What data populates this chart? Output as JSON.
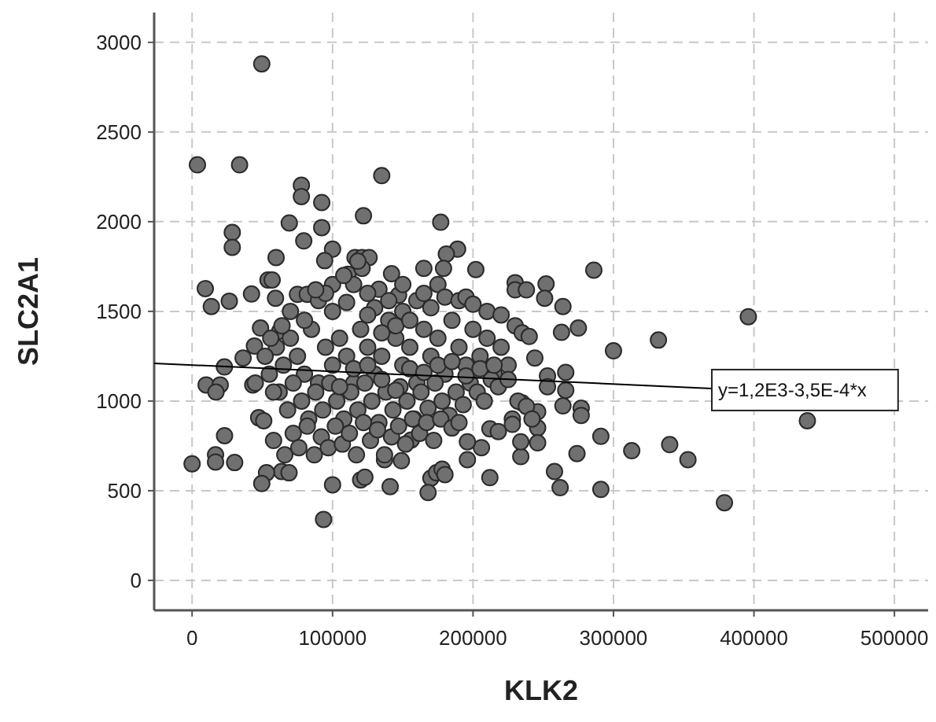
{
  "chart_data": {
    "type": "scatter",
    "xlabel": "KLK2",
    "ylabel": "SLC2A1",
    "xlim": [
      -27000,
      524000
    ],
    "xticks": [
      0,
      100000,
      200000,
      300000,
      400000,
      500000
    ],
    "ylim": [
      -167,
      3166
    ],
    "yticks": [
      0,
      500,
      1000,
      1500,
      2000,
      2500,
      3000
    ],
    "grid": true,
    "series": [
      {
        "color": "#707070",
        "marker": "circle",
        "x": [
          49600,
          3800,
          33800,
          135000,
          77800,
          77800,
          92300,
          122000,
          69200,
          92300,
          177000,
          28600,
          28600,
          79500,
          100000,
          94400,
          59800,
          189000,
          181000,
          116000,
          121000,
          126000,
          111000,
          121000,
          142000,
          165000,
          179000,
          202000,
          286000,
          9400,
          13700,
          26500,
          42300,
          54000,
          57000,
          59400,
          133000,
          147000,
          75000,
          82000,
          230000,
          230000,
          238000,
          252000,
          251000,
          264000,
          263000,
          275000,
          300000,
          332000,
          396000,
          438000,
          379000,
          353000,
          340000,
          313000,
          291000,
          291000,
          274000,
          277000,
          277000,
          264000,
          262000,
          258000,
          244000,
          253000,
          253000,
          266000,
          266000,
          246000,
          246000,
          246000,
          234000,
          234000,
          228000,
          235000,
          212000,
          218000,
          212000,
          206000,
          196000,
          196000,
          170000,
          174000,
          178000,
          180000,
          168000,
          141000,
          149000,
          156000,
          120000,
          123000,
          137000,
          100000,
          93600,
          63700,
          69000,
          53000,
          49600,
          47400,
          51000,
          43200,
          23100,
          16700,
          16700,
          30300,
          0,
          10000,
          20000,
          17000,
          23000,
          36300,
          44400,
          48700,
          62400,
          60000,
          65000,
          70000,
          75000,
          80000,
          85000,
          90000,
          95000,
          100000,
          105000,
          110000,
          115000,
          120000,
          125000,
          130000,
          135000,
          140000,
          145000,
          150000,
          155000,
          160000,
          165000,
          170000,
          175000,
          180000,
          185000,
          190000,
          195000,
          200000,
          205000,
          210000,
          215000,
          220000,
          225000,
          62000,
          68000,
          72000,
          78000,
          83000,
          88000,
          93000,
          98000,
          103000,
          108000,
          113000,
          118000,
          123000,
          128000,
          133000,
          138000,
          143000,
          148000,
          153000,
          158000,
          163000,
          168000,
          173000,
          178000,
          183000,
          188000,
          193000,
          198000,
          203000,
          208000,
          213000,
          218000,
          58000,
          66000,
          72000,
          76000,
          82000,
          87000,
          92000,
          97000,
          102000,
          107000,
          112000,
          117000,
          122000,
          127000,
          132000,
          137000,
          142000,
          147000,
          152000,
          157000,
          162000,
          167000,
          172000,
          177000,
          185000,
          190000,
          70000,
          80000,
          90000,
          100000,
          110000,
          115000,
          125000,
          130000,
          140000,
          150000,
          160000,
          165000,
          170000,
          175000,
          180000,
          190000,
          195000,
          200000,
          210000,
          220000,
          230000,
          235000,
          240000,
          55000,
          52000,
          56000,
          45000,
          58000,
          64000,
          100000,
          108000,
          118000,
          95000,
          88000,
          150000,
          145000,
          155000,
          125000,
          135000,
          105000,
          115000,
          125000,
          135000,
          145000,
          155000,
          165000,
          175000,
          185000,
          195000,
          205000,
          215000,
          225000,
          232000,
          238000,
          242000,
          228000
        ],
        "values": [
          2880,
          2317,
          2317,
          2257,
          2203,
          2140,
          2107,
          2033,
          1993,
          1967,
          1997,
          1940,
          1857,
          1893,
          1847,
          1783,
          1800,
          1847,
          1820,
          1800,
          1800,
          1800,
          1707,
          1740,
          1710,
          1740,
          1740,
          1733,
          1730,
          1627,
          1527,
          1557,
          1597,
          1675,
          1675,
          1573,
          1623,
          1590,
          1595,
          1595,
          1660,
          1620,
          1620,
          1653,
          1573,
          1527,
          1383,
          1407,
          1280,
          1340,
          1470,
          890,
          433,
          673,
          757,
          723,
          803,
          507,
          707,
          960,
          920,
          973,
          517,
          607,
          1240,
          1140,
          1080,
          1160,
          1060,
          940,
          850,
          767,
          690,
          773,
          900,
          990,
          845,
          830,
          573,
          740,
          673,
          773,
          570,
          600,
          620,
          590,
          490,
          523,
          667,
          783,
          560,
          575,
          673,
          533,
          340,
          607,
          600,
          600,
          540,
          907,
          890,
          1090,
          807,
          700,
          660,
          657,
          650,
          1090,
          1090,
          1050,
          1190,
          1240,
          1307,
          1407,
          1390,
          1300,
          1200,
          1350,
          1250,
          1150,
          1400,
          1100,
          1300,
          1200,
          1350,
          1250,
          1100,
          1400,
          1300,
          1150,
          1250,
          1450,
          1350,
          1200,
          1300,
          1100,
          1400,
          1250,
          1350,
          1150,
          1450,
          1300,
          1200,
          1400,
          1250,
          1350,
          1150,
          1300,
          1200,
          1050,
          950,
          1100,
          1000,
          900,
          1050,
          950,
          1100,
          1000,
          900,
          1050,
          950,
          1100,
          1000,
          880,
          1050,
          950,
          1080,
          1000,
          900,
          1050,
          960,
          1100,
          1000,
          920,
          1050,
          980,
          1100,
          1050,
          1000,
          1120,
          1080,
          780,
          700,
          820,
          740,
          860,
          700,
          800,
          740,
          860,
          760,
          820,
          700,
          880,
          780,
          840,
          700,
          800,
          860,
          760,
          900,
          820,
          880,
          780,
          900,
          850,
          880,
          1500,
          1450,
          1560,
          1500,
          1550,
          1650,
          1600,
          1520,
          1560,
          1500,
          1560,
          1600,
          1520,
          1650,
          1580,
          1560,
          1580,
          1540,
          1500,
          1480,
          1420,
          1380,
          1360,
          1150,
          1250,
          1350,
          1100,
          1050,
          1420,
          1650,
          1700,
          1780,
          1600,
          1620,
          1650,
          1420,
          1450,
          1480,
          1380,
          1080,
          1180,
          1200,
          1120,
          1060,
          1180,
          1160,
          1200,
          1220,
          1140,
          1180,
          1200,
          1120,
          1000,
          970,
          900,
          870
        ]
      },
      {
        "type": "line",
        "color": "#000000",
        "marker": "none",
        "x": [
          -27000,
          370000
        ],
        "values": [
          1210,
          1070
        ]
      }
    ],
    "annotations": [
      {
        "text": "y=1,2E3-3,5E-4*x",
        "x": 370000,
        "y": 1070
      }
    ]
  }
}
